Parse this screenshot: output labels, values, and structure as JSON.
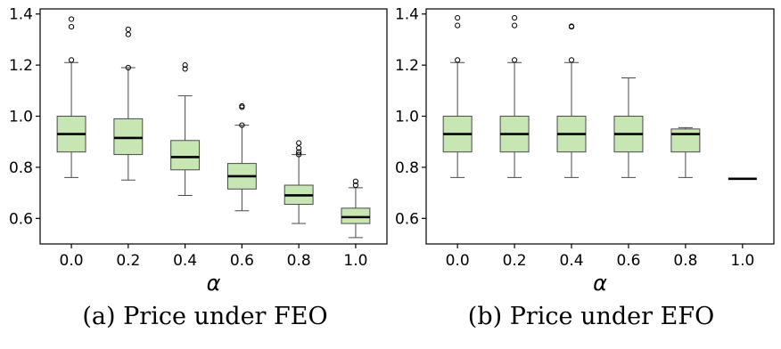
{
  "figure": {
    "captions": [
      "(a) Price under FEO",
      "(b) Price under EFO"
    ]
  },
  "colors": {
    "box_fill": "#c8e6b4",
    "box_edge": "#4a4a4a",
    "median": "#000000",
    "axis": "#000000"
  },
  "chart_data": [
    {
      "type": "box",
      "caption": "(a) Price under FEO",
      "xlabel": "α",
      "ylabel": "",
      "categories": [
        "0.0",
        "0.2",
        "0.4",
        "0.6",
        "0.8",
        "1.0"
      ],
      "ylim": [
        0.5,
        1.42
      ],
      "yticks": [
        "0.6",
        "0.8",
        "1.0",
        "1.2",
        "1.4"
      ],
      "grid": false,
      "boxes": [
        {
          "whisker_low": 0.76,
          "q1": 0.86,
          "median": 0.93,
          "q3": 1.0,
          "whisker_high": 1.21,
          "outliers": [
            1.22,
            1.35,
            1.38
          ]
        },
        {
          "whisker_low": 0.75,
          "q1": 0.85,
          "median": 0.915,
          "q3": 0.99,
          "whisker_high": 1.19,
          "outliers": [
            1.19,
            1.32,
            1.34
          ]
        },
        {
          "whisker_low": 0.69,
          "q1": 0.79,
          "median": 0.84,
          "q3": 0.905,
          "whisker_high": 1.08,
          "outliers": [
            1.185,
            1.2
          ]
        },
        {
          "whisker_low": 0.63,
          "q1": 0.715,
          "median": 0.765,
          "q3": 0.815,
          "whisker_high": 0.965,
          "outliers": [
            0.965,
            1.035,
            1.04
          ]
        },
        {
          "whisker_low": 0.58,
          "q1": 0.655,
          "median": 0.69,
          "q3": 0.73,
          "whisker_high": 0.85,
          "outliers": [
            0.85,
            0.86,
            0.875,
            0.895
          ]
        },
        {
          "whisker_low": 0.525,
          "q1": 0.58,
          "median": 0.605,
          "q3": 0.64,
          "whisker_high": 0.72,
          "outliers": [
            0.73,
            0.745
          ]
        }
      ]
    },
    {
      "type": "box",
      "caption": "(b) Price under EFO",
      "xlabel": "α",
      "ylabel": "",
      "categories": [
        "0.0",
        "0.2",
        "0.4",
        "0.6",
        "0.8",
        "1.0"
      ],
      "ylim": [
        0.5,
        1.42
      ],
      "yticks": [
        "0.6",
        "0.8",
        "1.0",
        "1.2",
        "1.4"
      ],
      "grid": false,
      "boxes": [
        {
          "whisker_low": 0.76,
          "q1": 0.86,
          "median": 0.93,
          "q3": 1.0,
          "whisker_high": 1.21,
          "outliers": [
            1.22,
            1.355,
            1.385
          ]
        },
        {
          "whisker_low": 0.76,
          "q1": 0.86,
          "median": 0.93,
          "q3": 1.0,
          "whisker_high": 1.21,
          "outliers": [
            1.22,
            1.355,
            1.385
          ]
        },
        {
          "whisker_low": 0.76,
          "q1": 0.86,
          "median": 0.93,
          "q3": 1.0,
          "whisker_high": 1.21,
          "outliers": [
            1.22,
            1.35,
            1.352
          ]
        },
        {
          "whisker_low": 0.76,
          "q1": 0.86,
          "median": 0.93,
          "q3": 1.0,
          "whisker_high": 1.15,
          "outliers": []
        },
        {
          "whisker_low": 0.76,
          "q1": 0.86,
          "median": 0.93,
          "q3": 0.95,
          "whisker_high": 0.955,
          "outliers": []
        },
        {
          "whisker_low": 0.755,
          "q1": 0.755,
          "median": 0.755,
          "q3": 0.755,
          "whisker_high": 0.755,
          "outliers": []
        }
      ]
    }
  ]
}
